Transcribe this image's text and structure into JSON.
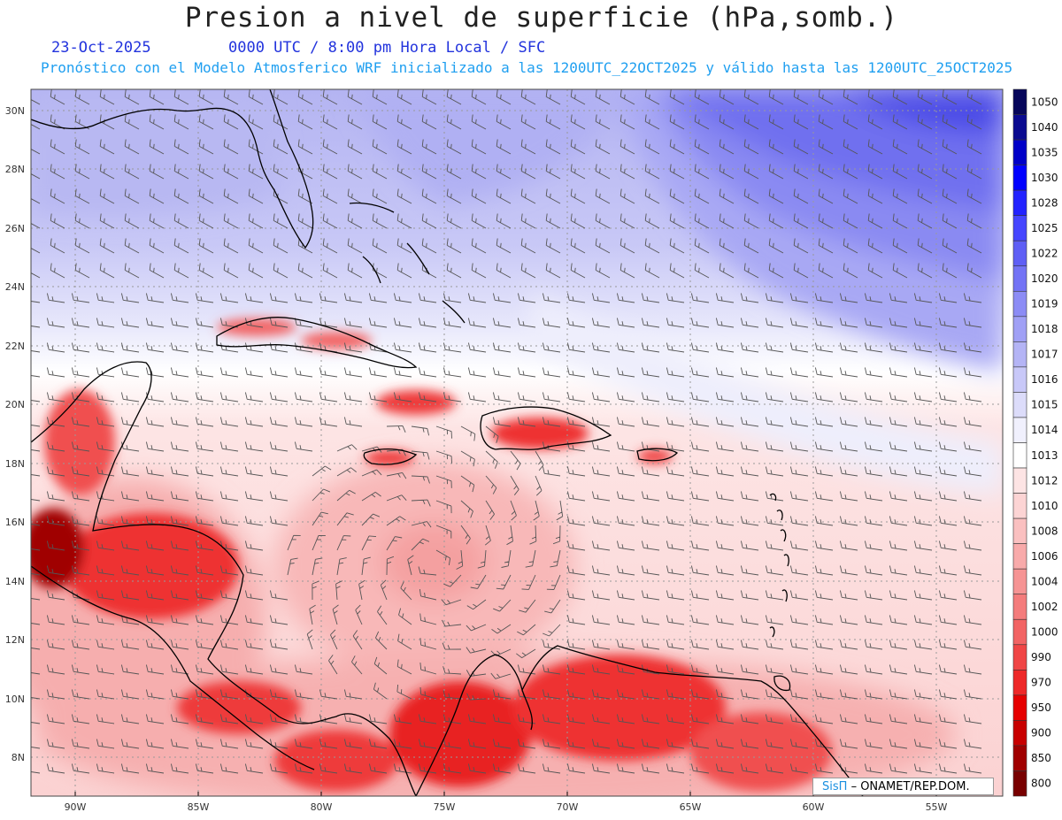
{
  "header": {
    "title": "Presion a nivel de superficie (hPa,somb.)",
    "date": "23-Oct-2025",
    "time_info": "0000 UTC / 8:00 pm Hora Local / SFC",
    "model_info": "Pronóstico con el Modelo Atmosferico WRF inicializado a las 1200UTC_22OCT2025 y válido hasta las  1200UTC_25OCT2025"
  },
  "map": {
    "lon_labels": [
      "90W",
      "85W",
      "80W",
      "75W",
      "70W",
      "65W",
      "60W",
      "55W"
    ],
    "lat_labels": [
      "30N",
      "28N",
      "26N",
      "24N",
      "22N",
      "20N",
      "18N",
      "16N",
      "14N",
      "12N",
      "10N",
      "8N"
    ]
  },
  "colorbar": {
    "levels": [
      "1050",
      "1040",
      "1035",
      "1030",
      "1028",
      "1025",
      "1022",
      "1020",
      "1019",
      "1018",
      "1017",
      "1016",
      "1015",
      "1014",
      "1013",
      "1012",
      "1010",
      "1008",
      "1006",
      "1004",
      "1002",
      "1000",
      "990",
      "970",
      "950",
      "900",
      "850",
      "800"
    ],
    "colors": [
      "#06065a",
      "#0a0a90",
      "#0000c8",
      "#0000ff",
      "#2323ff",
      "#4646ff",
      "#5f5ff5",
      "#7373f5",
      "#8c8cf5",
      "#a0a0f5",
      "#b4b4f5",
      "#c8c8f8",
      "#dcdcfa",
      "#f0f0fd",
      "#ffffff",
      "#fde4e4",
      "#fcd4d4",
      "#fac0c0",
      "#f8aaaa",
      "#f69494",
      "#f47c7c",
      "#f26464",
      "#f04646",
      "#ee2828",
      "#e60000",
      "#c80000",
      "#a00000",
      "#780000"
    ]
  },
  "credit": {
    "sis_label": "SisΠ",
    "org_label": "– ONAMET/REP.DOM."
  }
}
